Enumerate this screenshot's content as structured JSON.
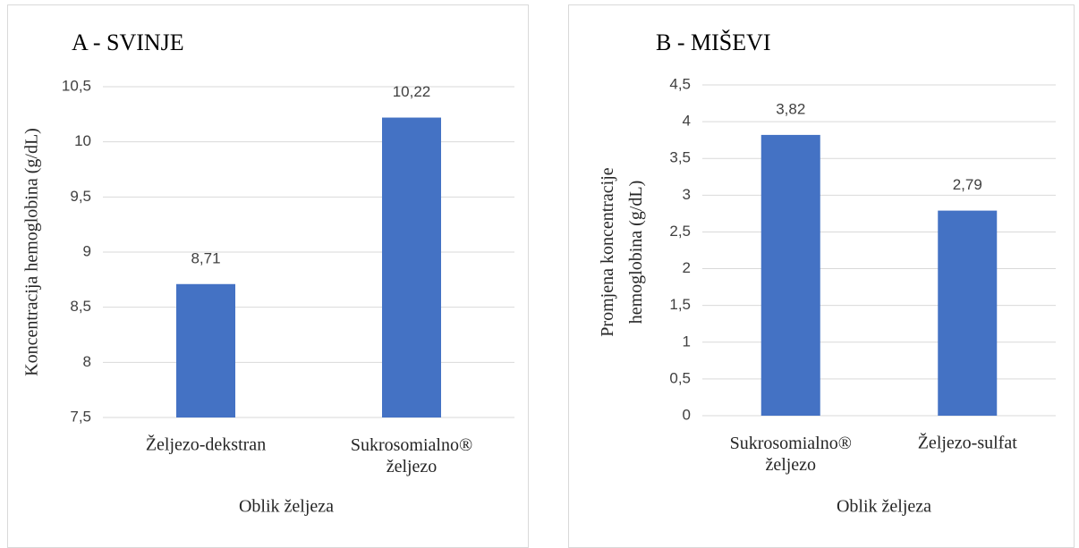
{
  "chart_data": [
    {
      "type": "bar",
      "title": "A - SVINJE",
      "x_label": "Oblik željeza",
      "y_label": "Koncentracija hemoglobina (g/dL)",
      "categories": [
        "Željezo-dekstran",
        "Sukrosomialno® željezo"
      ],
      "values": [
        8.71,
        10.22
      ],
      "value_labels": [
        "8,71",
        "10,22"
      ],
      "color": "#4472c4",
      "ylim": [
        7.5,
        10.5
      ],
      "yticks": [
        {
          "value": 7.5,
          "label": "7,5"
        },
        8,
        {
          "value": 8.5,
          "label": "8,5"
        },
        9,
        {
          "value": 9.5,
          "label": "9,5"
        },
        10,
        {
          "value": 10.5,
          "label": "10,5"
        }
      ],
      "grid": true
    },
    {
      "type": "bar",
      "title": "B - MIŠEVI",
      "x_label": "Oblik željeza",
      "y_label": "Promjena koncentracije hemoglobina (g/dL)",
      "categories": [
        "Sukrosomialno® željezo",
        "Željezo-sulfat"
      ],
      "values": [
        3.82,
        2.79
      ],
      "value_labels": [
        "3,82",
        "2,79"
      ],
      "color": "#4472c4",
      "ylim": [
        0,
        4.5
      ],
      "yticks": [
        0,
        {
          "value": 0.5,
          "label": "0,5"
        },
        1,
        {
          "value": 1.5,
          "label": "1,5"
        },
        2,
        {
          "value": 2.5,
          "label": "2,5"
        },
        3,
        {
          "value": 3.5,
          "label": "3,5"
        },
        4,
        {
          "value": 4.5,
          "label": "4,5"
        }
      ],
      "grid": true
    }
  ]
}
